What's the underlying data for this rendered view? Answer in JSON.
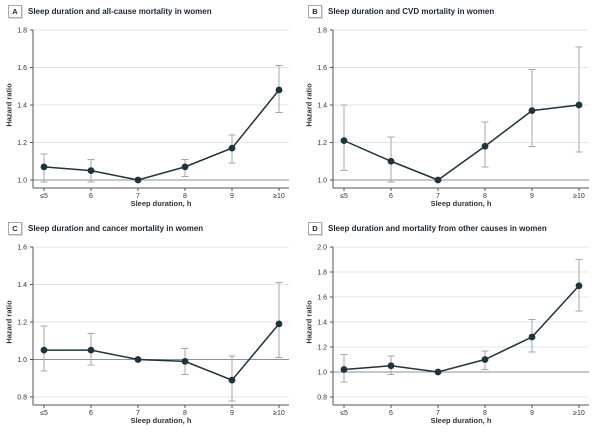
{
  "colors": {
    "line": "#1f333d",
    "point": "#1f333d",
    "error_bar": "#a3a7aa",
    "gridline": "#e4e5e6",
    "reference_line": "#8f9294",
    "axis": "#515557",
    "tick_text": "#333333",
    "title_text": "#1a2633"
  },
  "chart_data": [
    {
      "type": "line",
      "panel": "A",
      "title": "Sleep duration and all-cause mortality in women",
      "xlabel": "Sleep duration, h",
      "ylabel": "Hazard ratio",
      "categories": [
        "≤5",
        "6",
        "7",
        "8",
        "9",
        "≥10"
      ],
      "ylim": [
        1.0,
        1.8
      ],
      "yticks": [
        1.0,
        1.2,
        1.4,
        1.6,
        1.8
      ],
      "reference_y": 1.0,
      "grid": true,
      "legend": "none",
      "series": [
        {
          "name": "Hazard ratio (95% CI)",
          "values": [
            1.07,
            1.05,
            1.0,
            1.07,
            1.17,
            1.48
          ],
          "ci_low": [
            0.99,
            0.99,
            null,
            1.02,
            1.09,
            1.36
          ],
          "ci_high": [
            1.14,
            1.11,
            null,
            1.11,
            1.24,
            1.61
          ]
        }
      ]
    },
    {
      "type": "line",
      "panel": "B",
      "title": "Sleep duration and CVD mortality in women",
      "xlabel": "Sleep duration, h",
      "ylabel": "Hazard ratio",
      "categories": [
        "≤5",
        "6",
        "7",
        "8",
        "9",
        "≥10"
      ],
      "ylim": [
        1.0,
        1.8
      ],
      "yticks": [
        1.0,
        1.2,
        1.4,
        1.6,
        1.8
      ],
      "reference_y": 1.0,
      "grid": true,
      "legend": "none",
      "series": [
        {
          "name": "Hazard ratio (95% CI)",
          "values": [
            1.21,
            1.1,
            1.0,
            1.18,
            1.37,
            1.4
          ],
          "ci_low": [
            1.05,
            0.99,
            null,
            1.07,
            1.18,
            1.15
          ],
          "ci_high": [
            1.4,
            1.23,
            null,
            1.31,
            1.59,
            1.71
          ]
        }
      ]
    },
    {
      "type": "line",
      "panel": "C",
      "title": "Sleep duration and cancer mortality in women",
      "xlabel": "Sleep duration, h",
      "ylabel": "Hazard ratio",
      "categories": [
        "≤5",
        "6",
        "7",
        "8",
        "9",
        "≥10"
      ],
      "ylim": [
        0.8,
        1.6
      ],
      "yticks": [
        0.8,
        1.0,
        1.2,
        1.4,
        1.6
      ],
      "reference_y": 1.0,
      "grid": true,
      "legend": "none",
      "series": [
        {
          "name": "Hazard ratio (95% CI)",
          "values": [
            1.05,
            1.05,
            1.0,
            0.99,
            0.89,
            1.19
          ],
          "ci_low": [
            0.94,
            0.97,
            null,
            0.92,
            0.78,
            1.01
          ],
          "ci_high": [
            1.18,
            1.14,
            null,
            1.06,
            1.02,
            1.41
          ]
        }
      ]
    },
    {
      "type": "line",
      "panel": "D",
      "title": "Sleep duration and mortality from other causes in women",
      "xlabel": "Sleep duration, h",
      "ylabel": "Hazard ratio",
      "categories": [
        "≤5",
        "6",
        "7",
        "8",
        "9",
        "≥10"
      ],
      "ylim": [
        0.8,
        2.0
      ],
      "yticks": [
        0.8,
        1.0,
        1.2,
        1.4,
        1.6,
        1.8,
        2.0
      ],
      "reference_y": 1.0,
      "grid": true,
      "legend": "none",
      "series": [
        {
          "name": "Hazard ratio (95% CI)",
          "values": [
            1.02,
            1.05,
            1.0,
            1.1,
            1.28,
            1.69
          ],
          "ci_low": [
            0.92,
            0.98,
            null,
            1.02,
            1.16,
            1.49
          ],
          "ci_high": [
            1.14,
            1.13,
            null,
            1.17,
            1.42,
            1.9
          ]
        }
      ]
    }
  ]
}
